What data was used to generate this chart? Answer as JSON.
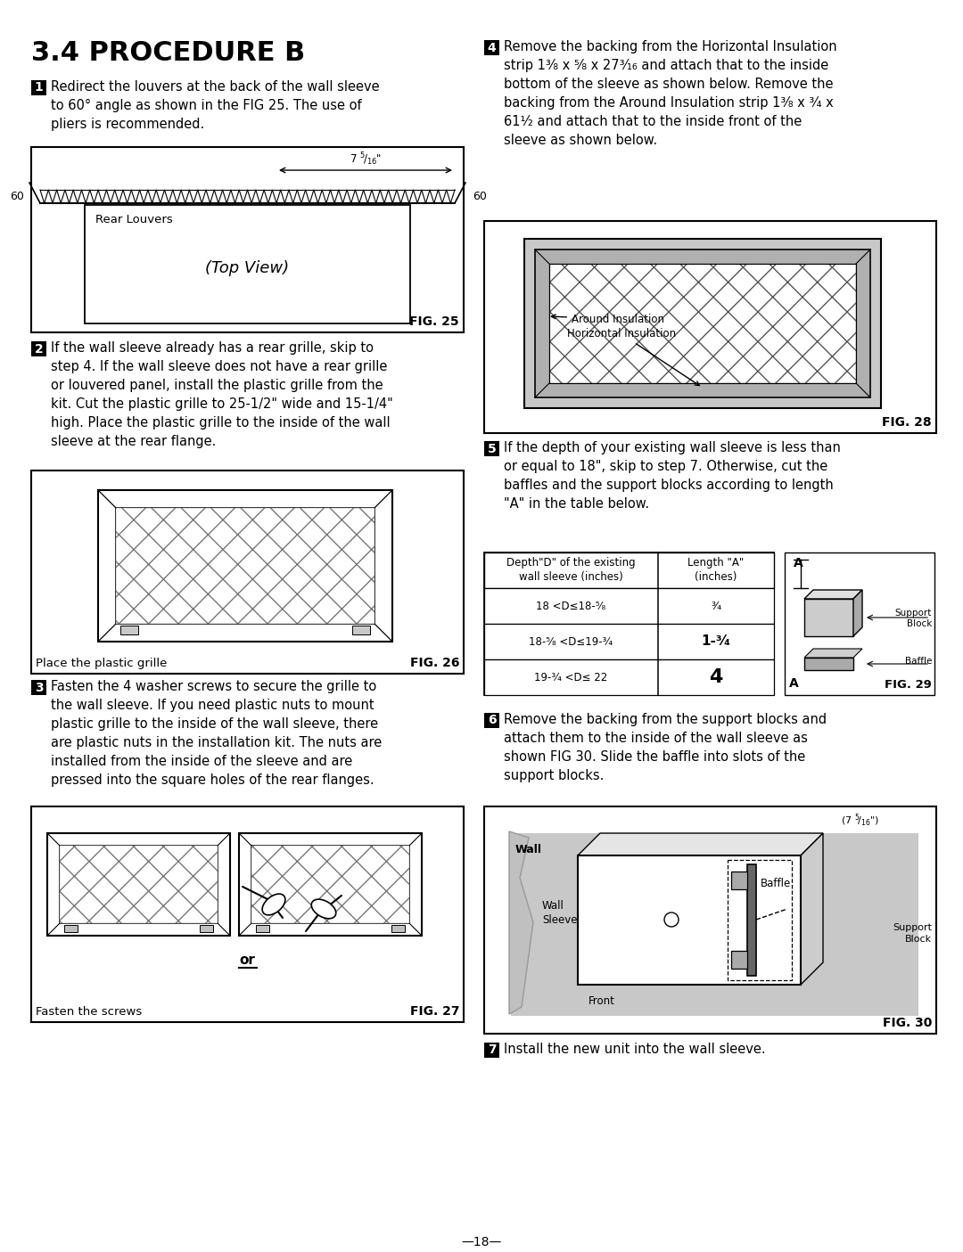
{
  "title": "3.4 PROCEDURE B",
  "bg": "#ffffff",
  "fg": "#000000",
  "page_number": "—18—",
  "FW": 1080,
  "FH": 1405,
  "step1_text": "Redirect the louvers at the back of the wall sleeve\nto 60° angle as shown in the FIG 25. The use of\npliers is recommended.",
  "step2_text": "If the wall sleeve already has a rear grille, skip to\nstep 4. If the wall sleeve does not have a rear grille\nor louvered panel, install the plastic grille from the\nkit. Cut the plastic grille to 25-1/2\" wide and 15-1/4\"\nhigh. Place the plastic grille to the inside of the wall\nsleeve at the rear flange.",
  "step3_text": "Fasten the 4 washer screws to secure the grille to\nthe wall sleeve. If you need plastic nuts to mount\nplastic grille to the inside of the wall sleeve, there\nare plastic nuts in the installation kit. The nuts are\ninstalled from the inside of the sleeve and are\npressed into the square holes of the rear flanges.",
  "step4_text": "Remove the backing from the Horizontal Insulation\nstrip 1³⁄₈ x ⁵⁄₈ x 27³⁄₁₆ and attach that to the inside\nbottom of the sleeve as shown below. Remove the\nbacking from the Around Insulation strip 1³⁄₈ x ³⁄₄ x\n61¹⁄₂ and attach that to the inside front of the\nsleeve as shown below.",
  "step5_text": "If the depth of your existing wall sleeve is less than\nor equal to 18\", skip to step 7. Otherwise, cut the\nbaffles and the support blocks according to length\n\"A\" in the table below.",
  "step6_text": "Remove the backing from the support blocks and\nattach them to the inside of the wall sleeve as\nshown FIG 30. Slide the baffle into slots of the\nsupport blocks.",
  "step7_text": "Install the new unit into the wall sleeve.",
  "tbl_col1_hdr": "Depth\"D\" of the existing\nwall sleeve (inches)",
  "tbl_col2_hdr": "Length \"A\"\n(inches)",
  "tbl_rows": [
    [
      "18 <D≤18-⁵⁄₈",
      "³⁄₄"
    ],
    [
      "18-⁵⁄₈ <D≤19-³⁄₄",
      "1-³⁄₄"
    ],
    [
      "19-³⁄₄ <D≤ 22",
      "4"
    ]
  ]
}
